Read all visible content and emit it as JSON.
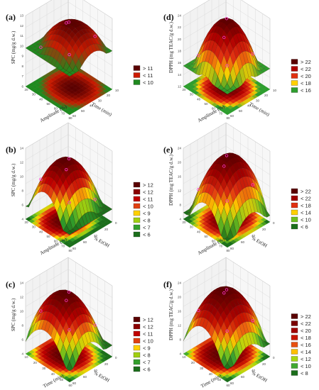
{
  "chart_data": [
    {
      "panel": "(a)",
      "type": "surface",
      "zlabel": "SPC (mg/g d.w.)",
      "xlabel": "Amplitude (%)",
      "ylabel": "Time (min)",
      "ztick_labels": [
        "6",
        "7",
        "8",
        "9",
        "10",
        "11",
        "12",
        "13"
      ],
      "xtick_labels": [
        "20",
        "30",
        "40",
        "50",
        "60",
        "70",
        "80"
      ],
      "ytick_labels": [
        "10",
        "20",
        "30",
        "40",
        "50",
        "60"
      ],
      "zlim": [
        6,
        13
      ],
      "surface_peak": 12.4,
      "surface_low": 9.8,
      "legend": [
        "> 11",
        "< 11",
        "< 10"
      ],
      "legend_colors": [
        "#5a0000",
        "#cc1a00",
        "#1f8a1f"
      ],
      "legend_position": "right"
    },
    {
      "panel": "(b)",
      "type": "surface",
      "zlabel": "SPC (mg/g d.w.)",
      "xlabel": "Amplitude (%)",
      "ylabel": "% EtOH",
      "ztick_labels": [
        "4",
        "6",
        "8",
        "10",
        "12",
        "14"
      ],
      "xtick_labels": [
        "20",
        "30",
        "40",
        "50",
        "60",
        "70",
        "80"
      ],
      "ytick_labels": [
        "0",
        "20",
        "40",
        "60",
        "80"
      ],
      "zlim": [
        4,
        14
      ],
      "surface_peak": 12.6,
      "surface_low": 5.8,
      "legend": [
        "> 12",
        "< 12",
        "< 11",
        "< 10",
        "< 9",
        "< 8",
        "< 7",
        "< 6"
      ],
      "legend_colors": [
        "#5a0000",
        "#8b0000",
        "#c00000",
        "#e04010",
        "#ffd000",
        "#a0d010",
        "#33a02c",
        "#1b6e1b"
      ],
      "legend_position": "right"
    },
    {
      "panel": "(c)",
      "type": "surface",
      "zlabel": "SPC (mg/g d.w.)",
      "xlabel": "Time (min)",
      "ylabel": "% EtOH",
      "ztick_labels": [
        "4",
        "6",
        "8",
        "10",
        "12",
        "14"
      ],
      "xtick_labels": [
        "10",
        "20",
        "30",
        "40",
        "50",
        "60"
      ],
      "ytick_labels": [
        "0",
        "20",
        "40",
        "60",
        "80"
      ],
      "zlim": [
        4,
        14
      ],
      "surface_peak": 12.8,
      "surface_low": 5.6,
      "legend": [
        "> 12",
        "< 12",
        "< 11",
        "< 10",
        "< 9",
        "< 8",
        "< 7",
        "< 6"
      ],
      "legend_colors": [
        "#5a0000",
        "#8b0000",
        "#c00000",
        "#e04010",
        "#ffd000",
        "#a0d010",
        "#33a02c",
        "#1b6e1b"
      ],
      "legend_position": "right"
    },
    {
      "panel": "(d)",
      "type": "surface",
      "zlabel": "DPPH (mg TEAC/g d.w.)",
      "xlabel": "Amplitude (%)",
      "ylabel": "Time (min)",
      "ztick_labels": [
        "12",
        "14",
        "16",
        "18",
        "20",
        "22",
        "24"
      ],
      "xtick_labels": [
        "20",
        "30",
        "40",
        "50",
        "60",
        "70",
        "80"
      ],
      "ytick_labels": [
        "10",
        "20",
        "30",
        "40",
        "50",
        "60"
      ],
      "zlim": [
        12,
        24
      ],
      "surface_peak": 23.5,
      "surface_low": 15.5,
      "legend": [
        "> 22",
        "< 22",
        "< 20",
        "< 18",
        "< 16"
      ],
      "legend_colors": [
        "#5a0000",
        "#b00000",
        "#e03010",
        "#ffd000",
        "#2e9e2e"
      ],
      "legend_position": "right"
    },
    {
      "panel": "(e)",
      "type": "surface",
      "zlabel": "DPPH (mg TEAC/g d.w.)",
      "xlabel": "Amplitude (%)",
      "ylabel": "% EtOH",
      "ztick_labels": [
        "4",
        "8",
        "12",
        "16",
        "20",
        "24"
      ],
      "xtick_labels": [
        "20",
        "30",
        "40",
        "50",
        "60",
        "70",
        "80"
      ],
      "ytick_labels": [
        "0",
        "20",
        "40",
        "60",
        "80"
      ],
      "zlim": [
        4,
        26
      ],
      "surface_peak": 23.8,
      "surface_low": 6,
      "legend": [
        "> 22",
        "< 22",
        "< 18",
        "< 14",
        "< 10",
        "< 6"
      ],
      "legend_colors": [
        "#5a0000",
        "#a00000",
        "#e03010",
        "#ffd000",
        "#6ec020",
        "#1b6e1b"
      ],
      "legend_position": "right"
    },
    {
      "panel": "(f)",
      "type": "surface",
      "zlabel": "DPPH (mg TEAC/g d.w.)",
      "xlabel": "Time (min)",
      "ylabel": "% EtOH",
      "ztick_labels": [
        "4",
        "8",
        "12",
        "16",
        "20",
        "24"
      ],
      "xtick_labels": [
        "10",
        "20",
        "30",
        "40",
        "50",
        "60"
      ],
      "ytick_labels": [
        "0",
        "20",
        "40",
        "60",
        "80"
      ],
      "zlim": [
        4,
        26
      ],
      "surface_peak": 24,
      "surface_low": 8,
      "legend": [
        "> 22",
        "< 22",
        "< 20",
        "< 18",
        "< 16",
        "< 14",
        "< 12",
        "< 10",
        "< 8"
      ],
      "legend_colors": [
        "#5a0000",
        "#7a0000",
        "#a00000",
        "#c81400",
        "#e85010",
        "#ffc000",
        "#a8d810",
        "#40a830",
        "#1b6e1b"
      ],
      "legend_position": "right"
    }
  ]
}
